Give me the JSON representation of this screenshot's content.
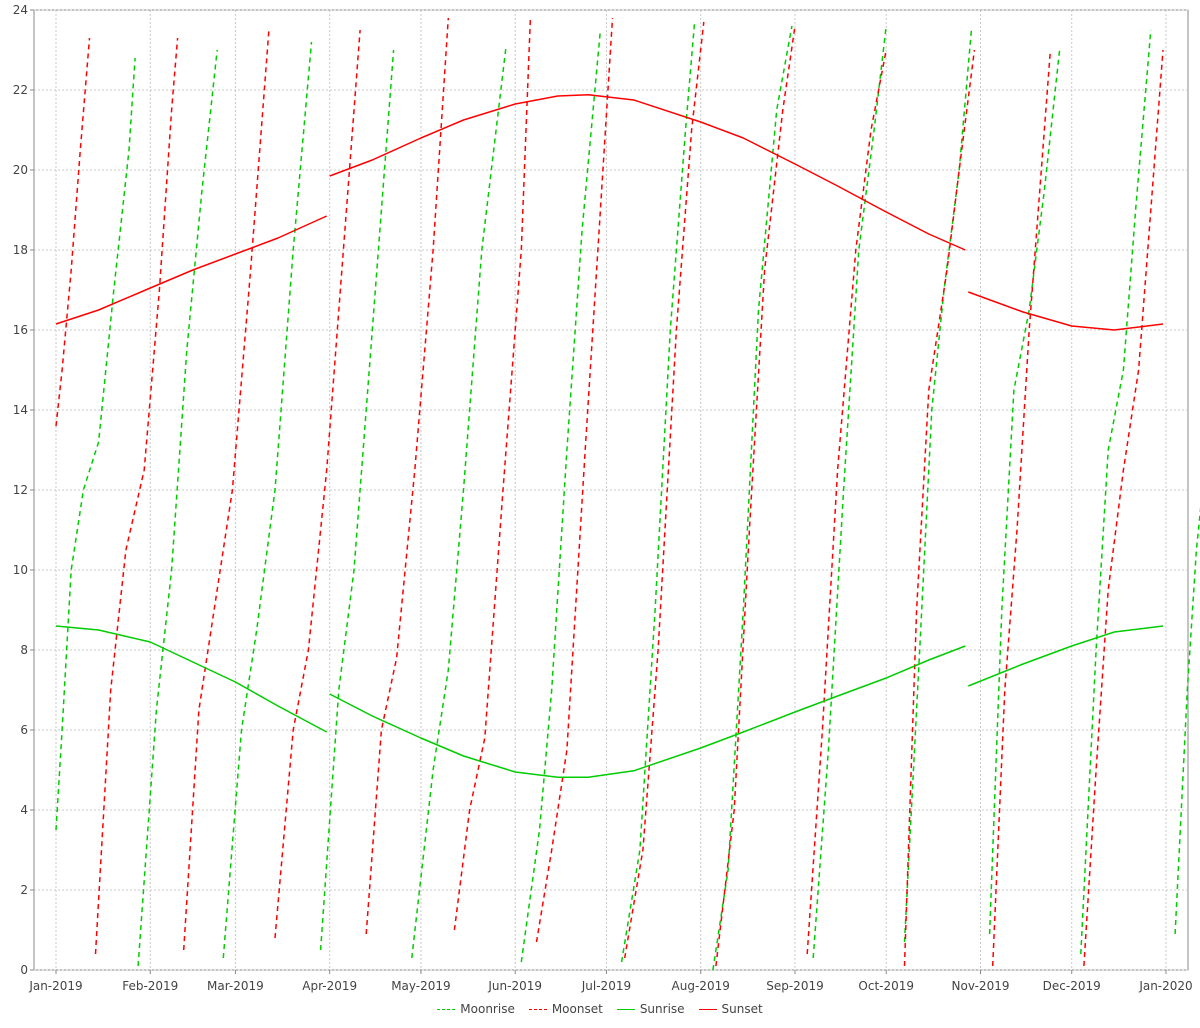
{
  "chart_data": {
    "type": "line",
    "title": "",
    "xlabel": "",
    "ylabel": "",
    "x_domain": [
      "2019-01-01",
      "2020-01-01"
    ],
    "ylim": [
      0,
      24
    ],
    "y_ticks": [
      0,
      2,
      4,
      6,
      8,
      10,
      12,
      14,
      16,
      18,
      20,
      22,
      24
    ],
    "x_ticks": [
      {
        "date": "2019-01-01",
        "label": "Jan-2019"
      },
      {
        "date": "2019-02-01",
        "label": "Feb-2019"
      },
      {
        "date": "2019-03-01",
        "label": "Mar-2019"
      },
      {
        "date": "2019-04-01",
        "label": "Apr-2019"
      },
      {
        "date": "2019-05-01",
        "label": "May-2019"
      },
      {
        "date": "2019-06-01",
        "label": "Jun-2019"
      },
      {
        "date": "2019-07-01",
        "label": "Jul-2019"
      },
      {
        "date": "2019-08-01",
        "label": "Aug-2019"
      },
      {
        "date": "2019-09-01",
        "label": "Sep-2019"
      },
      {
        "date": "2019-10-01",
        "label": "Oct-2019"
      },
      {
        "date": "2019-11-01",
        "label": "Nov-2019"
      },
      {
        "date": "2019-12-01",
        "label": "Dec-2019"
      },
      {
        "date": "2020-01-01",
        "label": "Jan-2020"
      }
    ],
    "grid": true,
    "legend_position": "bottom",
    "series": [
      {
        "name": "Moonrise",
        "color": "#00cc00",
        "style": "dashed",
        "segments": [
          [
            [
              "2019-01-01",
              3.5
            ],
            [
              "2019-01-03",
              6.0
            ],
            [
              "2019-01-06",
              10.0
            ],
            [
              "2019-01-10",
              12.0
            ],
            [
              "2019-01-15",
              13.2
            ],
            [
              "2019-01-20",
              17.0
            ],
            [
              "2019-01-25",
              20.5
            ],
            [
              "2019-01-27",
              22.8
            ]
          ],
          [
            [
              "2019-01-28",
              0.1
            ],
            [
              "2019-02-03",
              6.5
            ],
            [
              "2019-02-08",
              10.0
            ],
            [
              "2019-02-13",
              15.5
            ],
            [
              "2019-02-18",
              19.5
            ],
            [
              "2019-02-23",
              23.0
            ]
          ],
          [
            [
              "2019-02-25",
              0.3
            ],
            [
              "2019-03-03",
              6.0
            ],
            [
              "2019-03-08",
              8.5
            ],
            [
              "2019-03-14",
              12.0
            ],
            [
              "2019-03-20",
              18.0
            ],
            [
              "2019-03-26",
              23.2
            ]
          ],
          [
            [
              "2019-03-29",
              0.5
            ],
            [
              "2019-04-04",
              7.0
            ],
            [
              "2019-04-09",
              10.0
            ],
            [
              "2019-04-15",
              16.0
            ],
            [
              "2019-04-22",
              23.0
            ]
          ],
          [
            [
              "2019-04-28",
              0.3
            ],
            [
              "2019-05-05",
              5.0
            ],
            [
              "2019-05-10",
              7.5
            ],
            [
              "2019-05-15",
              12.0
            ],
            [
              "2019-05-21",
              18.0
            ],
            [
              "2019-05-29",
              23.1
            ]
          ],
          [
            [
              "2019-06-03",
              0.2
            ],
            [
              "2019-06-09",
              3.5
            ],
            [
              "2019-06-13",
              7.0
            ],
            [
              "2019-06-18",
              13.0
            ],
            [
              "2019-06-23",
              18.5
            ],
            [
              "2019-06-29",
              23.5
            ]
          ],
          [
            [
              "2019-07-06",
              0.2
            ],
            [
              "2019-07-12",
              3.0
            ],
            [
              "2019-07-17",
              9.0
            ],
            [
              "2019-07-22",
              16.0
            ],
            [
              "2019-07-27",
              21.0
            ],
            [
              "2019-07-30",
              23.7
            ]
          ],
          [
            [
              "2019-08-05",
              0.0
            ],
            [
              "2019-08-10",
              2.5
            ],
            [
              "2019-08-15",
              9.0
            ],
            [
              "2019-08-20",
              16.5
            ],
            [
              "2019-08-26",
              21.5
            ],
            [
              "2019-08-31",
              23.6
            ]
          ],
          [
            [
              "2019-09-07",
              0.3
            ],
            [
              "2019-09-12",
              5.5
            ],
            [
              "2019-09-17",
              12.0
            ],
            [
              "2019-09-22",
              18.0
            ],
            [
              "2019-09-27",
              21.0
            ],
            [
              "2019-10-01",
              23.6
            ]
          ],
          [
            [
              "2019-10-07",
              0.7
            ],
            [
              "2019-10-12",
              8.0
            ],
            [
              "2019-10-16",
              14.0
            ],
            [
              "2019-10-20",
              17.0
            ],
            [
              "2019-10-25",
              20.0
            ],
            [
              "2019-10-29",
              23.5
            ]
          ],
          [
            [
              "2019-11-04",
              0.9
            ],
            [
              "2019-11-08",
              9.0
            ],
            [
              "2019-11-12",
              14.5
            ],
            [
              "2019-11-17",
              16.5
            ],
            [
              "2019-11-22",
              19.5
            ],
            [
              "2019-11-27",
              23.0
            ]
          ],
          [
            [
              "2019-12-04",
              0.4
            ],
            [
              "2019-12-09",
              8.0
            ],
            [
              "2019-12-13",
              13.0
            ],
            [
              "2019-12-18",
              15.0
            ],
            [
              "2019-12-22",
              19.0
            ],
            [
              "2019-12-27",
              23.5
            ]
          ],
          [
            [
              "2020-01-04",
              0.9
            ],
            [
              "2020-01-08",
              7.0
            ],
            [
              "2020-01-11",
              10.5
            ],
            [
              "2020-01-13",
              12.0
            ]
          ]
        ]
      },
      {
        "name": "Moonset",
        "color": "#ff0000",
        "style": "dashed",
        "segments": [
          [
            [
              "2019-01-01",
              13.6
            ],
            [
              "2019-01-03",
              15.0
            ],
            [
              "2019-01-06",
              17.5
            ],
            [
              "2019-01-09",
              20.5
            ],
            [
              "2019-01-12",
              23.3
            ]
          ],
          [
            [
              "2019-01-14",
              0.4
            ],
            [
              "2019-01-19",
              7.0
            ],
            [
              "2019-01-24",
              10.5
            ],
            [
              "2019-01-30",
              12.5
            ],
            [
              "2019-02-04",
              17.0
            ],
            [
              "2019-02-08",
              21.5
            ],
            [
              "2019-02-10",
              23.3
            ]
          ],
          [
            [
              "2019-02-12",
              0.5
            ],
            [
              "2019-02-17",
              6.5
            ],
            [
              "2019-02-22",
              9.0
            ],
            [
              "2019-02-28",
              12.0
            ],
            [
              "2019-03-06",
              17.5
            ],
            [
              "2019-03-12",
              23.5
            ]
          ],
          [
            [
              "2019-03-14",
              0.8
            ],
            [
              "2019-03-20",
              6.0
            ],
            [
              "2019-03-25",
              8.0
            ],
            [
              "2019-03-31",
              12.5
            ],
            [
              "2019-04-06",
              18.5
            ],
            [
              "2019-04-11",
              23.5
            ]
          ],
          [
            [
              "2019-04-13",
              0.9
            ],
            [
              "2019-04-18",
              6.0
            ],
            [
              "2019-04-23",
              7.8
            ],
            [
              "2019-04-29",
              12.5
            ],
            [
              "2019-05-05",
              18.0
            ],
            [
              "2019-05-10",
              23.8
            ]
          ],
          [
            [
              "2019-05-12",
              1.0
            ],
            [
              "2019-05-17",
              4.0
            ],
            [
              "2019-05-22",
              5.8
            ],
            [
              "2019-05-28",
              12.0
            ],
            [
              "2019-06-03",
              18.0
            ],
            [
              "2019-06-06",
              23.8
            ]
          ],
          [
            [
              "2019-06-08",
              0.7
            ],
            [
              "2019-06-13",
              3.0
            ],
            [
              "2019-06-18",
              5.5
            ],
            [
              "2019-06-24",
              13.0
            ],
            [
              "2019-06-29",
              19.0
            ],
            [
              "2019-07-03",
              23.8
            ]
          ],
          [
            [
              "2019-07-07",
              0.3
            ],
            [
              "2019-07-13",
              3.0
            ],
            [
              "2019-07-18",
              8.0
            ],
            [
              "2019-07-24",
              16.0
            ],
            [
              "2019-07-29",
              21.0
            ],
            [
              "2019-08-02",
              23.7
            ]
          ],
          [
            [
              "2019-08-06",
              0.1
            ],
            [
              "2019-08-12",
              4.0
            ],
            [
              "2019-08-17",
              11.0
            ],
            [
              "2019-08-22",
              17.5
            ],
            [
              "2019-08-28",
              21.5
            ],
            [
              "2019-09-01",
              23.6
            ]
          ],
          [
            [
              "2019-09-05",
              0.4
            ],
            [
              "2019-09-10",
              6.0
            ],
            [
              "2019-09-15",
              12.5
            ],
            [
              "2019-09-21",
              18.0
            ],
            [
              "2019-09-26",
              21.0
            ],
            [
              "2019-10-01",
              23.0
            ]
          ],
          [
            [
              "2019-10-07",
              0.1
            ],
            [
              "2019-10-11",
              9.0
            ],
            [
              "2019-10-15",
              14.5
            ],
            [
              "2019-10-21",
              17.5
            ],
            [
              "2019-10-25",
              20.0
            ],
            [
              "2019-10-30",
              23.0
            ]
          ],
          [
            [
              "2019-11-05",
              0.1
            ],
            [
              "2019-11-09",
              7.0
            ],
            [
              "2019-11-13",
              11.0
            ],
            [
              "2019-11-17",
              16.0
            ],
            [
              "2019-11-24",
              23.0
            ]
          ],
          [
            [
              "2019-12-05",
              0.1
            ],
            [
              "2019-12-09",
              5.0
            ],
            [
              "2019-12-13",
              9.5
            ],
            [
              "2019-12-18",
              12.5
            ],
            [
              "2019-12-23",
              15.0
            ],
            [
              "2019-12-31",
              23.0
            ]
          ]
        ]
      },
      {
        "name": "Sunrise",
        "color": "#00cc00",
        "style": "solid",
        "segments": [
          [
            [
              "2019-01-01",
              8.6
            ],
            [
              "2019-01-15",
              8.5
            ],
            [
              "2019-02-01",
              8.2
            ],
            [
              "2019-02-15",
              7.7
            ],
            [
              "2019-03-01",
              7.2
            ],
            [
              "2019-03-15",
              6.6
            ],
            [
              "2019-03-31",
              5.95
            ]
          ],
          [
            [
              "2019-04-01",
              6.9
            ],
            [
              "2019-04-15",
              6.35
            ],
            [
              "2019-05-01",
              5.8
            ],
            [
              "2019-05-15",
              5.35
            ],
            [
              "2019-06-01",
              4.95
            ],
            [
              "2019-06-15",
              4.82
            ],
            [
              "2019-06-25",
              4.82
            ],
            [
              "2019-07-10",
              4.98
            ],
            [
              "2019-08-01",
              5.55
            ],
            [
              "2019-08-15",
              5.95
            ],
            [
              "2019-09-01",
              6.45
            ],
            [
              "2019-09-15",
              6.85
            ],
            [
              "2019-10-01",
              7.3
            ],
            [
              "2019-10-15",
              7.75
            ],
            [
              "2019-10-27",
              8.1
            ]
          ],
          [
            [
              "2019-10-28",
              7.1
            ],
            [
              "2019-11-15",
              7.65
            ],
            [
              "2019-12-01",
              8.1
            ],
            [
              "2019-12-15",
              8.45
            ],
            [
              "2019-12-31",
              8.6
            ]
          ]
        ]
      },
      {
        "name": "Sunset",
        "color": "#ff0000",
        "style": "solid",
        "segments": [
          [
            [
              "2019-01-01",
              16.15
            ],
            [
              "2019-01-15",
              16.5
            ],
            [
              "2019-02-01",
              17.05
            ],
            [
              "2019-02-15",
              17.5
            ],
            [
              "2019-03-01",
              17.9
            ],
            [
              "2019-03-15",
              18.3
            ],
            [
              "2019-03-31",
              18.85
            ]
          ],
          [
            [
              "2019-04-01",
              19.85
            ],
            [
              "2019-04-15",
              20.25
            ],
            [
              "2019-05-01",
              20.8
            ],
            [
              "2019-05-15",
              21.25
            ],
            [
              "2019-06-01",
              21.65
            ],
            [
              "2019-06-15",
              21.85
            ],
            [
              "2019-06-25",
              21.88
            ],
            [
              "2019-07-10",
              21.75
            ],
            [
              "2019-08-01",
              21.2
            ],
            [
              "2019-08-15",
              20.8
            ],
            [
              "2019-09-01",
              20.15
            ],
            [
              "2019-09-15",
              19.6
            ],
            [
              "2019-10-01",
              18.95
            ],
            [
              "2019-10-15",
              18.4
            ],
            [
              "2019-10-27",
              18.0
            ]
          ],
          [
            [
              "2019-10-28",
              16.95
            ],
            [
              "2019-11-15",
              16.45
            ],
            [
              "2019-12-01",
              16.1
            ],
            [
              "2019-12-15",
              16.0
            ],
            [
              "2019-12-31",
              16.15
            ]
          ]
        ]
      }
    ]
  }
}
